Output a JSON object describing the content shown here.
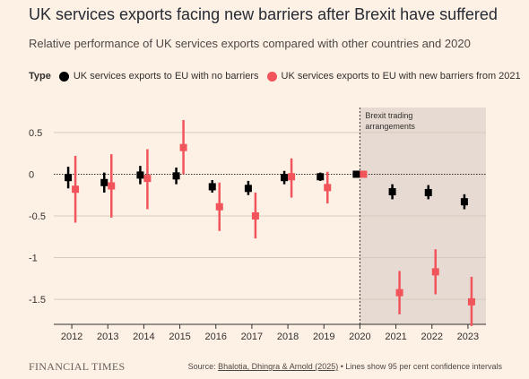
{
  "header": {
    "title": "UK services exports facing new barriers after Brexit have suffered",
    "subtitle": "Relative performance of UK services exports compared with other countries and 2020"
  },
  "legend": {
    "type_label": "Type",
    "items": [
      {
        "label": "UK services exports to EU with no barriers",
        "color": "#000000"
      },
      {
        "label": "UK services exports to EU with new barriers from 2021",
        "color": "#f2545b"
      }
    ]
  },
  "footer": {
    "brand": "FINANCIAL TIMES",
    "source_label": "Source: ",
    "source_ref": "Bhalotia, Dhingra & Arnold (2025)",
    "source_note": " • Lines show 95 per cent confidence intervals"
  },
  "colors": {
    "background": "#fdf1e5",
    "shade": "#e7dad2",
    "grid": "#d6c9bf"
  },
  "chart_data": {
    "type": "scatter",
    "categories": [
      "2012",
      "2013",
      "2014",
      "2015",
      "2016",
      "2017",
      "2018",
      "2019",
      "2020",
      "2021",
      "2022",
      "2023"
    ],
    "ylim": [
      -1.8,
      0.8
    ],
    "yticks": [
      0.5,
      0,
      -0.5,
      -1,
      -1.5
    ],
    "ytick_labels": [
      "0.5",
      "0",
      "-0.5",
      "-1",
      "-1.5"
    ],
    "annotation": [
      "Brexit trading",
      "arrangements"
    ],
    "shaded_from": "2020",
    "series": [
      {
        "name": "UK services exports to EU with no barriers",
        "color": "#000000",
        "values": [
          -0.04,
          -0.1,
          -0.01,
          -0.02,
          -0.15,
          -0.17,
          -0.04,
          -0.03,
          0.0,
          -0.21,
          -0.22,
          -0.33
        ],
        "ci_low": [
          -0.17,
          -0.22,
          -0.12,
          -0.12,
          -0.22,
          -0.25,
          -0.12,
          -0.08,
          0.0,
          -0.3,
          -0.3,
          -0.42
        ],
        "ci_high": [
          0.09,
          0.02,
          0.1,
          0.08,
          -0.07,
          -0.08,
          0.04,
          0.02,
          0.0,
          -0.12,
          -0.13,
          -0.24
        ]
      },
      {
        "name": "UK services exports to EU with new barriers from 2021",
        "color": "#f2545b",
        "values": [
          -0.18,
          -0.14,
          -0.05,
          0.32,
          -0.39,
          -0.5,
          -0.03,
          -0.16,
          0.0,
          -1.42,
          -1.17,
          -1.53
        ],
        "ci_low": [
          -0.58,
          -0.52,
          -0.42,
          0.0,
          -0.68,
          -0.77,
          -0.28,
          -0.35,
          0.0,
          -1.68,
          -1.44,
          -1.82
        ],
        "ci_high": [
          0.22,
          0.24,
          0.3,
          0.65,
          -0.1,
          -0.22,
          0.19,
          0.03,
          0.0,
          -1.16,
          -0.9,
          -1.23
        ]
      }
    ]
  }
}
